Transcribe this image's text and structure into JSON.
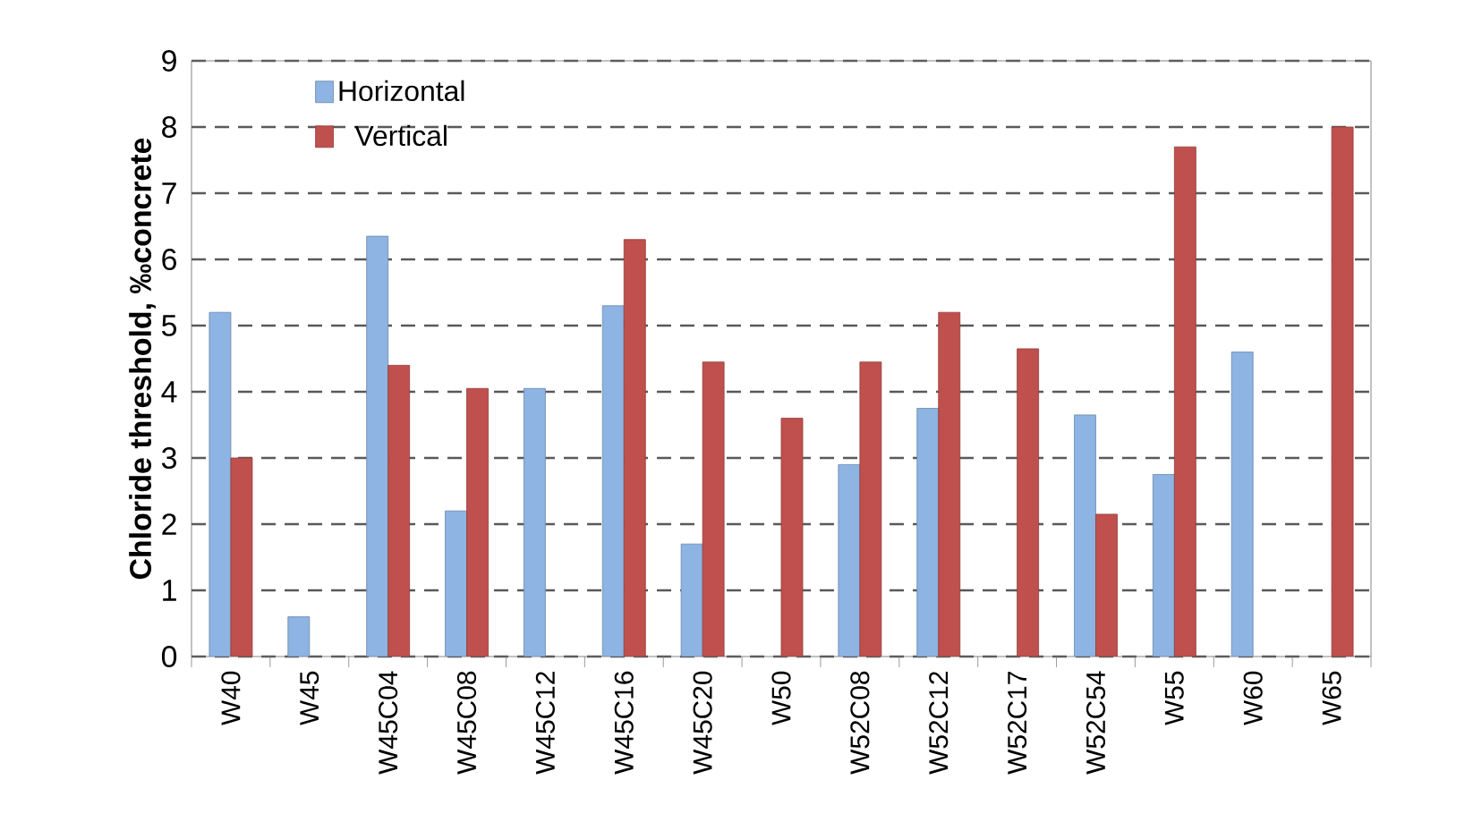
{
  "chart_data": {
    "type": "bar",
    "ylabel": "Chloride threshold, ‰concrete",
    "categories": [
      "W40",
      "W45",
      "W45C04",
      "W45C08",
      "W45C12",
      "W45C16",
      "W45C20",
      "W50",
      "W52C08",
      "W52C12",
      "W52C17",
      "W52C54",
      "W55",
      "W60",
      "W65"
    ],
    "series": [
      {
        "name": "Horizontal",
        "color": "#8db4e2",
        "values": [
          5.2,
          0.6,
          6.35,
          2.2,
          4.05,
          5.3,
          1.7,
          null,
          2.9,
          3.75,
          null,
          3.65,
          2.75,
          4.6,
          null
        ]
      },
      {
        "name": "Vertical",
        "color": "#c0504d",
        "values": [
          3.0,
          null,
          4.4,
          4.05,
          null,
          6.3,
          4.45,
          3.6,
          4.45,
          5.2,
          4.65,
          2.15,
          7.7,
          null,
          8.0
        ]
      }
    ],
    "ylim": [
      0,
      9
    ],
    "yticks": [
      0,
      1,
      2,
      3,
      4,
      5,
      6,
      7,
      8,
      9
    ],
    "grid": "y",
    "legend": "top left"
  }
}
